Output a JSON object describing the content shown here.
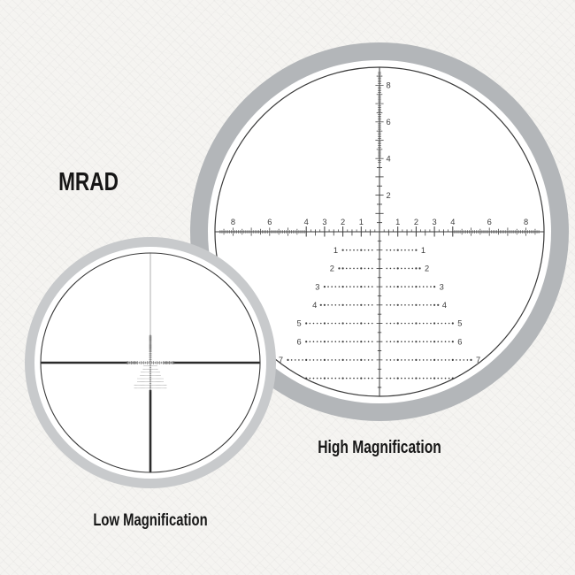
{
  "title": "MRAD",
  "captions": {
    "high": "High Magnification",
    "low": "Low Magnification"
  },
  "colors": {
    "background": "#f5f4f1",
    "ring_high": "#b3b6b9",
    "ring_low": "#c8cacc",
    "glass": "#ffffff",
    "reticle_line": "#3a3a3a",
    "reticle_fine": "#4a4a4a",
    "post": "#2b2b2b",
    "mini_line": "#555555",
    "mini_dot": "#676767",
    "hairline": "#9b9b9b",
    "axis_number": "#3d3d3d",
    "label_text": "#161616"
  },
  "reticle": {
    "horizontal_axis_labels": [
      "1",
      "2",
      "3",
      "4",
      "6",
      "8"
    ],
    "vertical_axis_labels": [
      "2",
      "4",
      "6",
      "8"
    ],
    "coarse_max_mrad": 4,
    "fine_max_mrad": 8.7,
    "dot_step_mrad": 0.2,
    "tree_rows": [
      {
        "n": 1,
        "half_width": 2.0,
        "label": "1"
      },
      {
        "n": 2,
        "half_width": 2.2,
        "label": "2"
      },
      {
        "n": 3,
        "half_width": 3.0,
        "label": "3"
      },
      {
        "n": 4,
        "half_width": 3.15,
        "label": "4"
      },
      {
        "n": 5,
        "half_width": 4.0,
        "label": "5"
      },
      {
        "n": 6,
        "half_width": 4.0,
        "label": "6"
      },
      {
        "n": 7,
        "half_width": 5.0,
        "label": "7"
      },
      {
        "n": 8,
        "half_width": 5.0,
        "label": null
      }
    ]
  }
}
